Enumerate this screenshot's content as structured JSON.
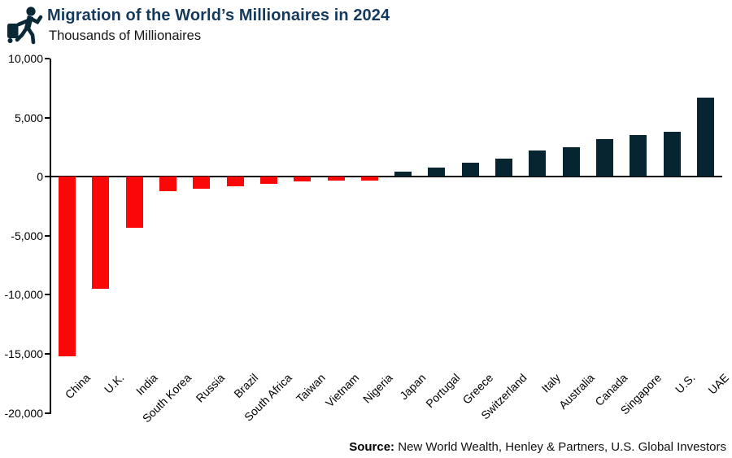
{
  "header": {
    "title": "Migration of the World’s Millionaires in 2024",
    "subtitle": "Thousands of Millionaires"
  },
  "icons": {
    "traveler_icon": "traveler-with-rolling-suitcase"
  },
  "colors": {
    "title": "#14395c",
    "positive_bar": "#062530",
    "negative_bar": "#fa0707",
    "axis": "#000000",
    "icon": "#0a2836",
    "background": "#ffffff"
  },
  "chart_data": {
    "type": "bar",
    "title": "Migration of the World’s Millionaires in 2024",
    "subtitle": "Thousands of Millionaires",
    "xlabel": "",
    "ylabel": "Thousands of Millionaires",
    "categories": [
      "China",
      "U.K.",
      "India",
      "South Korea",
      "Russia",
      "Brazil",
      "South Africa",
      "Taiwan",
      "Vietnam",
      "Nigeria",
      "Japan",
      "Portugal",
      "Greece",
      "Switzerland",
      "Italy",
      "Australia",
      "Canada",
      "Singapore",
      "U.S.",
      "UAE"
    ],
    "values": [
      -15200,
      -9500,
      -4300,
      -1200,
      -1000,
      -800,
      -600,
      -400,
      -300,
      -300,
      400,
      800,
      1200,
      1500,
      2200,
      2500,
      3200,
      3500,
      3800,
      6700
    ],
    "ylim": [
      -20000,
      10000
    ],
    "yticks": [
      10000,
      5000,
      0,
      -5000,
      -10000,
      -15000,
      -20000
    ],
    "ytick_labels": [
      "10,000",
      "5,000",
      "0",
      "-5,000",
      "-10,000",
      "-15,000",
      "-20,000"
    ],
    "grid": false,
    "legend": "none",
    "negative_color_meaning": "net outflow of millionaires",
    "positive_color_meaning": "net inflow of millionaires"
  },
  "source": {
    "label": "Source:",
    "text": " New World Wealth, Henley & Partners, U.S. Global Investors"
  }
}
